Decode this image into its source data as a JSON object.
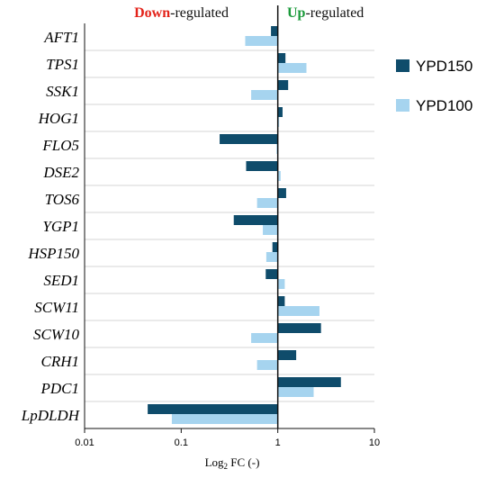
{
  "chart_data": {
    "type": "bar",
    "orientation": "horizontal",
    "x_scale": "log",
    "xlim": [
      0.01,
      10
    ],
    "xlabel": "Log₂ FC (-)",
    "xlabel_base": "Log",
    "xlabel_sub": "2",
    "xlabel_rest": " FC (-)",
    "xticks": [
      "0.01",
      "0.1",
      "1",
      "10"
    ],
    "reference_line": 1,
    "grid": "horizontal separators between genes",
    "header": {
      "down_word": "Down",
      "down_rest": "-regulated",
      "up_word": "Up",
      "up_rest": "-regulated"
    },
    "categories": [
      "AFT1",
      "TPS1",
      "SSK1",
      "HOG1",
      "FLO5",
      "DSE2",
      "TOS6",
      "YGP1",
      "HSP150",
      "SED1",
      "SCW11",
      "SCW10",
      "CRH1",
      "PDC1",
      "LpDLDH"
    ],
    "series": [
      {
        "name": "YPD150",
        "color": "#0f4c6b",
        "values": [
          0.85,
          1.2,
          1.28,
          1.12,
          0.25,
          0.47,
          1.22,
          0.35,
          0.88,
          0.75,
          1.18,
          2.8,
          1.55,
          4.5,
          0.045
        ]
      },
      {
        "name": "YPD100",
        "color": "#a6d4ef",
        "values": [
          0.46,
          1.98,
          0.53,
          1.0,
          0.97,
          1.07,
          0.61,
          0.7,
          0.76,
          1.18,
          2.7,
          0.53,
          0.61,
          2.35,
          0.08
        ]
      }
    ],
    "legend_position": "right",
    "colors": {
      "down": "#e3231a",
      "up": "#1a9a3a",
      "axis": "#111111",
      "grid": "#d6d6d6"
    }
  }
}
